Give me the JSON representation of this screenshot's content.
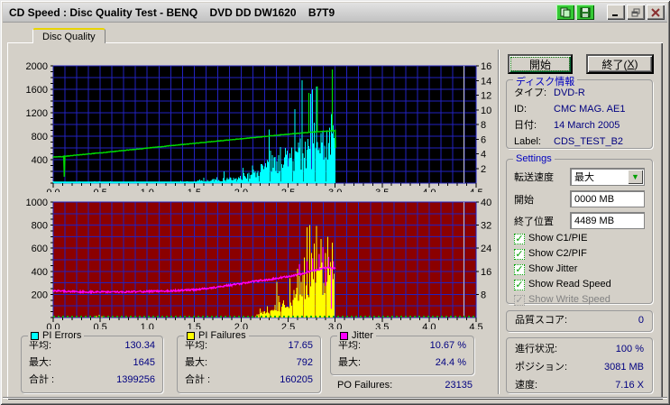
{
  "window": {
    "title": "CD Speed : Disc Quality Test - BENQ    DVD DD DW1620    B7T9",
    "titlebar_icons": [
      "copy-pages",
      "floppy-disk",
      "minimize-bar",
      "restore-windows",
      "close-x"
    ]
  },
  "colors": {
    "value_text": "#000080",
    "group_title": "#0000c0",
    "check_green": "#00a000",
    "window_face": "#d4d0c8",
    "tab_highlight": "#e8d400"
  },
  "tab": {
    "label": "Disc Quality"
  },
  "controls": {
    "start": "開始",
    "exit_prefix": "終了(",
    "exit_key": "X",
    "exit_suffix": ")"
  },
  "disc_info": {
    "title": "ディスク情報",
    "rows": [
      {
        "label": "タイプ:",
        "value": "DVD-R"
      },
      {
        "label": "ID:",
        "value": "CMC MAG. AE1"
      },
      {
        "label": "日付:",
        "value": "14 March 2005"
      },
      {
        "label": "Label:",
        "value": "CDS_TEST_B2"
      }
    ]
  },
  "settings": {
    "title": "Settings",
    "speed_label": "転送速度",
    "speed_value": "最大",
    "combo_arrow": "▼",
    "start_label": "開始",
    "start_value": "0000 MB",
    "end_label": "終了位置",
    "end_value": "4489 MB",
    "check_glyph": "✓",
    "checkboxes": [
      {
        "label": "Show C1/PIE",
        "checked": true,
        "enabled": true
      },
      {
        "label": "Show C2/PIF",
        "checked": true,
        "enabled": true
      },
      {
        "label": "Show Jitter",
        "checked": true,
        "enabled": true
      },
      {
        "label": "Show Read Speed",
        "checked": true,
        "enabled": true
      },
      {
        "label": "Show Write Speed",
        "checked": true,
        "enabled": false
      }
    ]
  },
  "quality": {
    "label": "品質スコア:",
    "value": "0"
  },
  "progress": {
    "rows": [
      {
        "label": "進行状況:",
        "value": "100 %"
      },
      {
        "label": "ポジション:",
        "value": "3081 MB"
      },
      {
        "label": "速度:",
        "value": "7.16 X"
      }
    ]
  },
  "stats": {
    "pi_errors": {
      "title": "PI Errors",
      "color": "#00ffff",
      "rows": [
        {
          "label": "平均:",
          "value": "130.34"
        },
        {
          "label": "最大:",
          "value": "1645"
        },
        {
          "label": "合計 :",
          "value": "1399256"
        }
      ]
    },
    "pi_failures": {
      "title": "PI Failures",
      "color": "#ffff00",
      "rows": [
        {
          "label": "平均:",
          "value": "17.65"
        },
        {
          "label": "最大:",
          "value": "792"
        },
        {
          "label": "合計 :",
          "value": "160205"
        }
      ]
    },
    "jitter": {
      "title": "Jitter",
      "color": "#ff00ff",
      "rows": [
        {
          "label": "平均:",
          "value": "10.67 %"
        },
        {
          "label": "最大:",
          "value": "24.4 %"
        }
      ]
    },
    "po_failures": {
      "label": "PO Failures:",
      "value": "23135"
    }
  },
  "chart_data": [
    {
      "id": "top",
      "type": "bar",
      "bg": "#000000",
      "grid_color": "#2222c0",
      "marker_color": "#c8c8c8",
      "marker_x": 4.37,
      "x_range": [
        0,
        4.5
      ],
      "x_grid_step": 0.125,
      "x_labels": [
        "0.0",
        "0.5",
        "1.0",
        "1.5",
        "2.0",
        "2.5",
        "3.0",
        "3.5",
        "4.0",
        "4.5"
      ],
      "left_axis": {
        "min": 0,
        "max": 2000,
        "grid_step": 200,
        "labels": [
          2000,
          1600,
          1200,
          800,
          400
        ]
      },
      "right_axis": {
        "min": 0,
        "max": 16,
        "labels": [
          16,
          14,
          12,
          10,
          8,
          6,
          4,
          2
        ]
      },
      "series": [
        {
          "name": "PI Errors",
          "type": "bar",
          "axis": "left",
          "color": "#00ffff",
          "seed": 7,
          "bar_pitch": 0.01,
          "points": [
            [
              0,
              12
            ],
            [
              1.3,
              14
            ],
            [
              1.45,
              28
            ],
            [
              1.6,
              45
            ],
            [
              1.75,
              65
            ],
            [
              1.9,
              95
            ],
            [
              2.0,
              140
            ],
            [
              2.1,
              190
            ],
            [
              2.2,
              270
            ],
            [
              2.3,
              340
            ],
            [
              2.4,
              440
            ],
            [
              2.5,
              490
            ],
            [
              2.6,
              570
            ],
            [
              2.7,
              630
            ],
            [
              2.8,
              690
            ],
            [
              2.9,
              800
            ],
            [
              3.0,
              850
            ],
            [
              3.001,
              0
            ],
            [
              4.5,
              0
            ]
          ],
          "spikes": [
            [
              2.74,
              1520
            ],
            [
              2.8,
              1645
            ],
            [
              2.78,
              1030
            ],
            [
              2.94,
              950
            ],
            [
              2.96,
              1180
            ],
            [
              2.63,
              760
            ],
            [
              2.47,
              600
            ],
            [
              2.33,
              480
            ],
            [
              2.12,
              300
            ],
            [
              2.02,
              260
            ]
          ]
        },
        {
          "name": "PI Errors baseline",
          "type": "line",
          "axis": "left",
          "color": "#00ffff",
          "width": 2,
          "noise": 0,
          "points": [
            [
              0,
              12
            ],
            [
              3.0,
              12
            ]
          ]
        },
        {
          "name": "Read Speed",
          "type": "line",
          "axis": "right",
          "color": "#00dd00",
          "width": 1.4,
          "noise": 0.035,
          "seed": 3,
          "points": [
            [
              0,
              3.55
            ],
            [
              0.1,
              3.62
            ],
            [
              0.112,
              3.64
            ],
            [
              0.118,
              0.9
            ],
            [
              0.125,
              3.67
            ],
            [
              0.5,
              4.12
            ],
            [
              1.0,
              4.78
            ],
            [
              1.5,
              5.42
            ],
            [
              2.0,
              6.05
            ],
            [
              2.5,
              6.68
            ],
            [
              2.8,
              7.0
            ],
            [
              3.0,
              7.16
            ],
            [
              3.004,
              4.8
            ]
          ],
          "spikes": [
            [
              2.72,
              12.3
            ],
            [
              2.81,
              13.2
            ],
            [
              2.97,
              15.5
            ]
          ]
        }
      ]
    },
    {
      "id": "bottom",
      "type": "bar",
      "bg": "#8b0000",
      "grid_color": "#2222c0",
      "marker_color": "#c8c8c8",
      "marker_x": 4.37,
      "x_range": [
        0,
        4.5
      ],
      "x_grid_step": 0.125,
      "x_labels": [
        "0.0",
        "0.5",
        "1.0",
        "1.5",
        "2.0",
        "2.5",
        "3.0",
        "3.5",
        "4.0",
        "4.5"
      ],
      "left_axis": {
        "min": 0,
        "max": 1000,
        "grid_step": 100,
        "labels": [
          1000,
          800,
          600,
          400,
          200
        ]
      },
      "right_axis": {
        "min": 0,
        "max": 40,
        "labels": [
          40,
          32,
          24,
          16,
          8
        ]
      },
      "series": [
        {
          "name": "PI Failures",
          "type": "bar",
          "axis": "left",
          "color": "#ffff00",
          "seed": 21,
          "bar_pitch": 0.01,
          "points": [
            [
              0,
              0
            ],
            [
              2.15,
              0
            ],
            [
              2.2,
              70
            ],
            [
              2.3,
              90
            ],
            [
              2.4,
              110
            ],
            [
              2.5,
              170
            ],
            [
              2.6,
              280
            ],
            [
              2.7,
              400
            ],
            [
              2.8,
              450
            ],
            [
              2.9,
              430
            ],
            [
              2.99,
              420
            ],
            [
              3.0,
              0
            ],
            [
              4.5,
              0
            ]
          ],
          "spikes": [
            [
              0.46,
              16
            ],
            [
              0.49,
              22
            ],
            [
              0.52,
              12
            ],
            [
              2.38,
              310
            ],
            [
              2.52,
              340
            ],
            [
              2.56,
              240
            ],
            [
              2.6,
              420
            ],
            [
              2.64,
              300
            ],
            [
              2.67,
              520
            ],
            [
              2.7,
              780
            ],
            [
              2.73,
              350
            ],
            [
              2.75,
              560
            ],
            [
              2.78,
              640
            ],
            [
              2.8,
              792
            ],
            [
              2.83,
              420
            ],
            [
              2.85,
              680
            ],
            [
              2.88,
              300
            ],
            [
              2.9,
              560
            ],
            [
              2.92,
              700
            ],
            [
              2.95,
              480
            ],
            [
              2.97,
              650
            ],
            [
              2.99,
              380
            ]
          ]
        },
        {
          "name": "C2/PIF baseline",
          "type": "line",
          "axis": "left",
          "color": "#00a800",
          "width": 2,
          "noise": 0,
          "dash": "2 3",
          "points": [
            [
              0,
              8
            ],
            [
              4.5,
              8
            ]
          ]
        },
        {
          "name": "Jitter",
          "type": "line",
          "axis": "right",
          "color": "#ff00ff",
          "width": 1.3,
          "noise": 0.3,
          "seed": 13,
          "points": [
            [
              0,
              9.2
            ],
            [
              0.3,
              8.9
            ],
            [
              0.7,
              8.8
            ],
            [
              1.0,
              9.0
            ],
            [
              1.3,
              9.3
            ],
            [
              1.5,
              9.6
            ],
            [
              1.7,
              10.3
            ],
            [
              1.9,
              11.3
            ],
            [
              2.1,
              12.3
            ],
            [
              2.3,
              13.2
            ],
            [
              2.5,
              14.2
            ],
            [
              2.65,
              15.2
            ],
            [
              2.8,
              16.5
            ],
            [
              2.9,
              17.3
            ],
            [
              3.0,
              17.0
            ]
          ],
          "spikes": [
            [
              2.62,
              18.5
            ],
            [
              2.7,
              19.5
            ],
            [
              2.76,
              20.5
            ],
            [
              2.83,
              22
            ],
            [
              2.87,
              24.4
            ],
            [
              2.9,
              11
            ],
            [
              2.93,
              21
            ],
            [
              2.96,
              3
            ],
            [
              2.98,
              19.5
            ]
          ]
        }
      ]
    }
  ]
}
